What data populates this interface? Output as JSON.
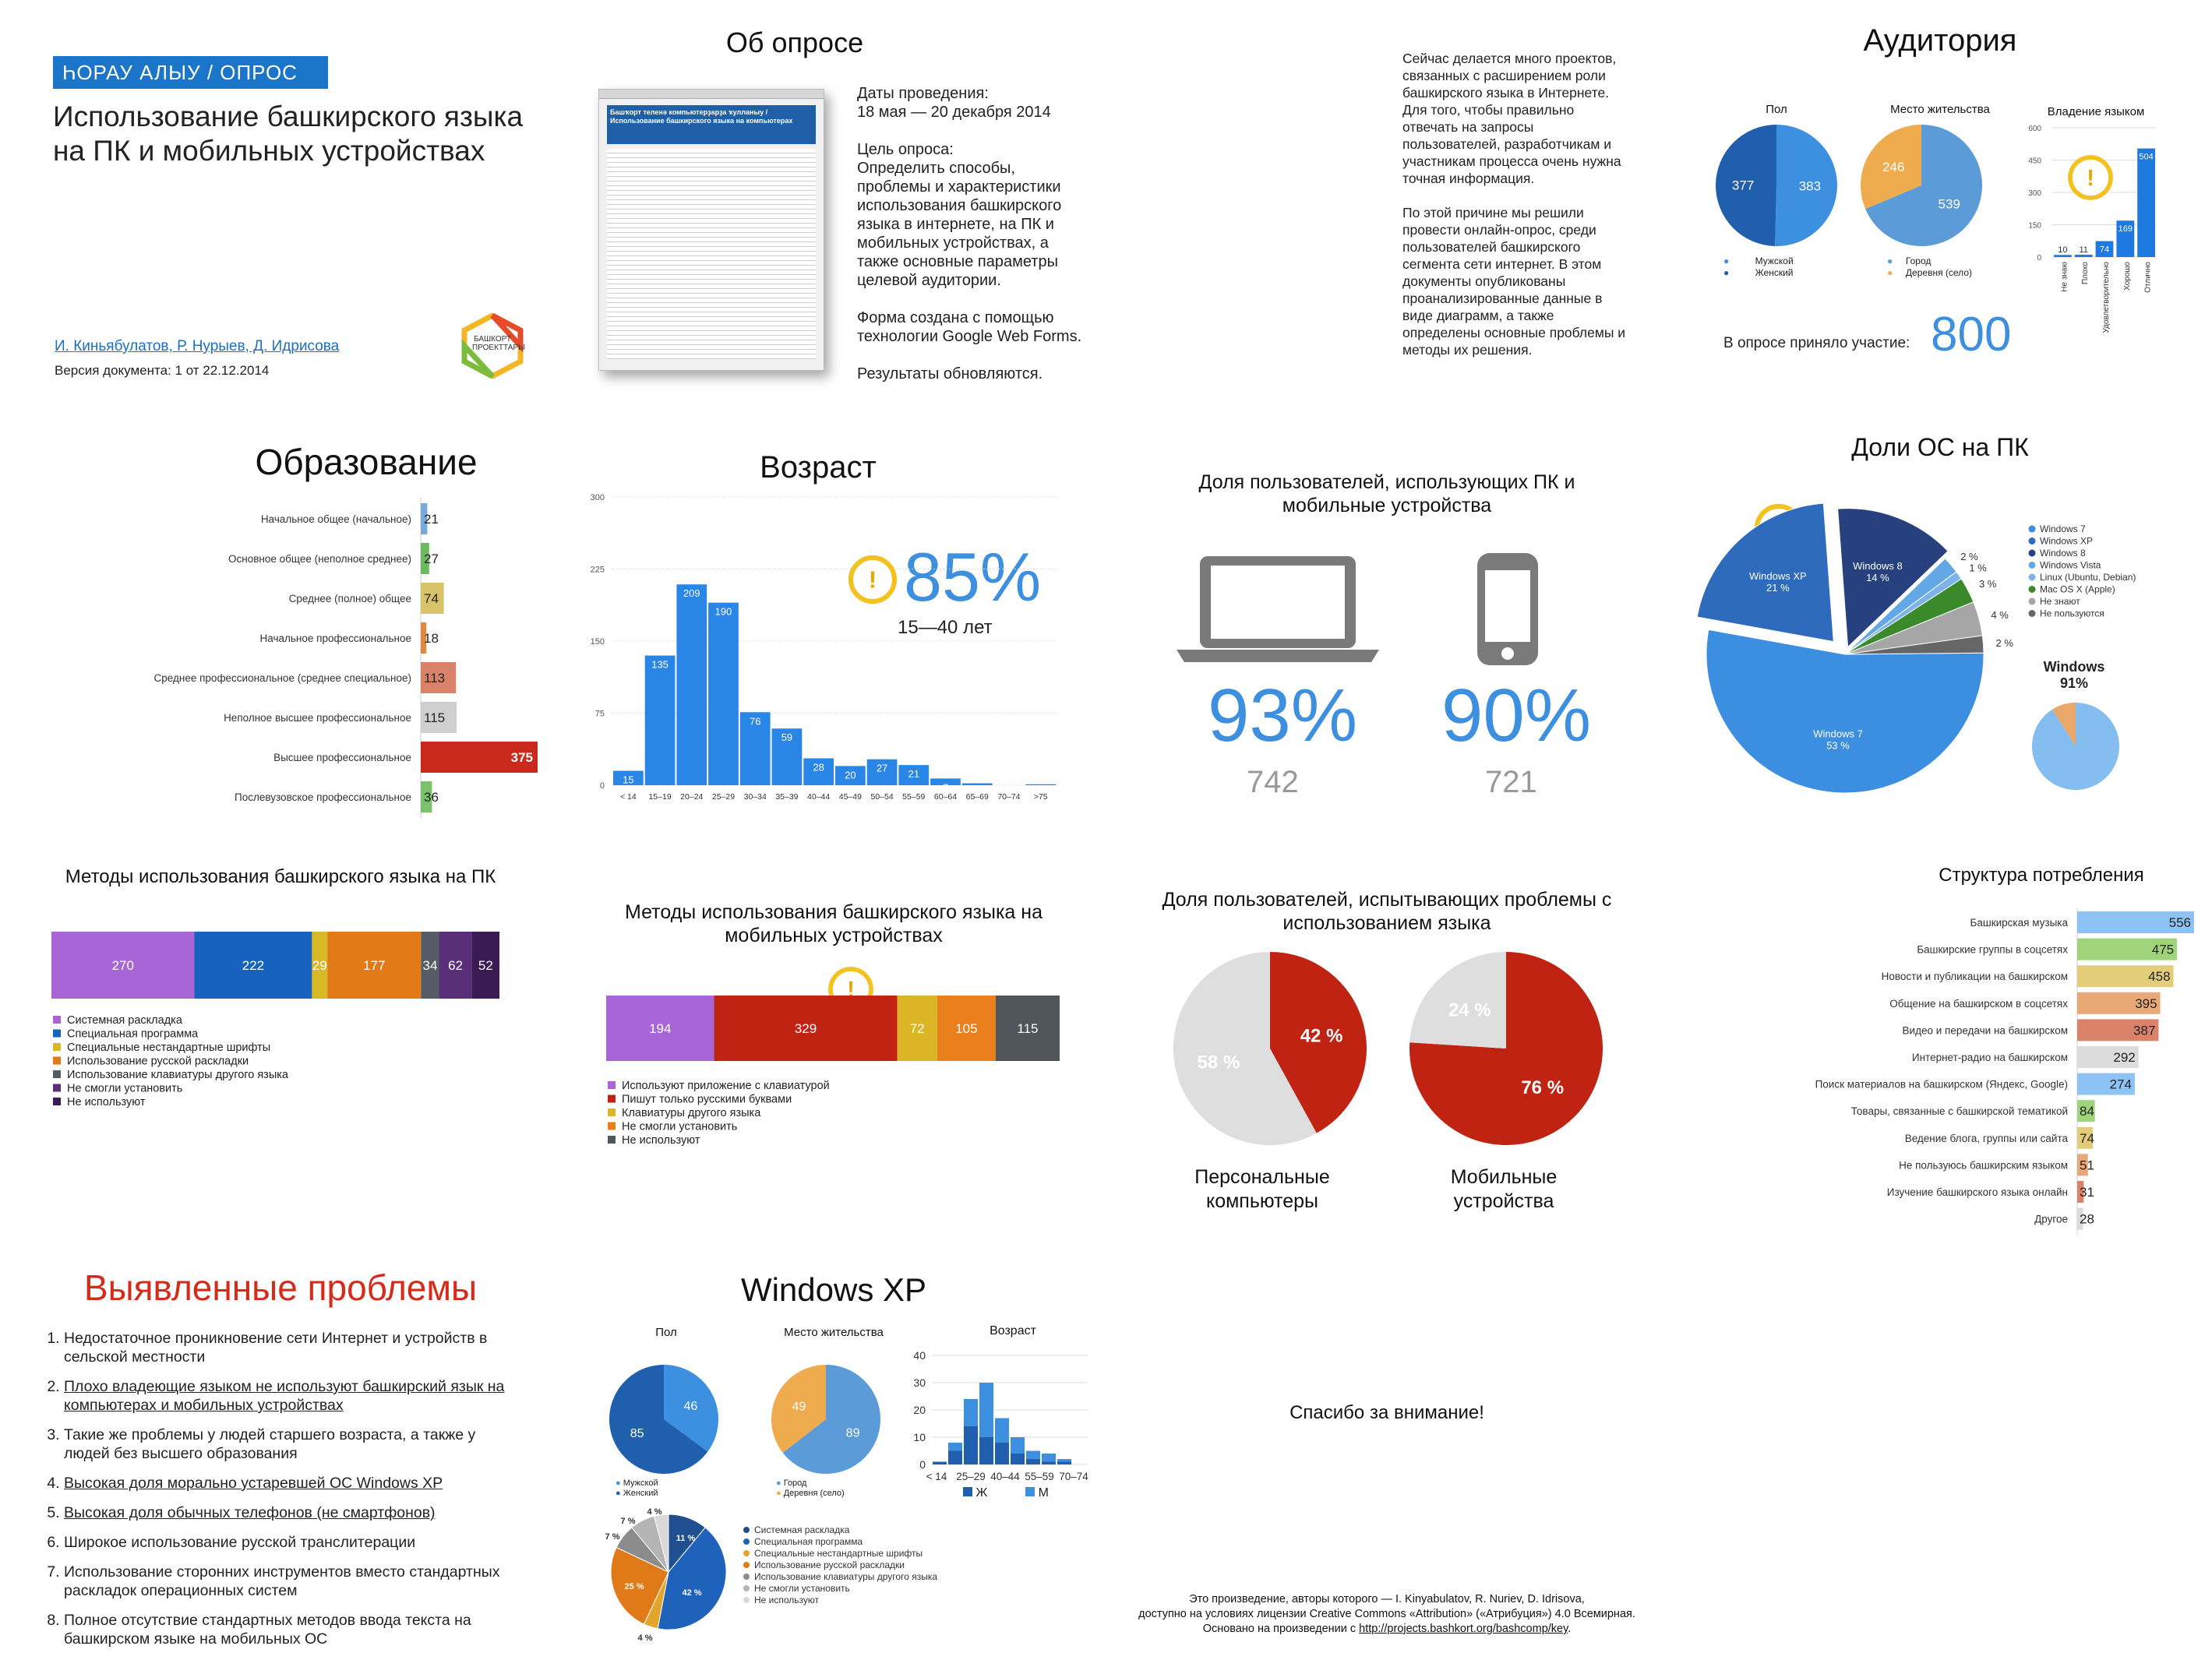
{
  "header": {
    "badge": "ҺОРАУ АЛЫУ / ОПРОС",
    "title": "Использование башкирского языка на ПК и мобильных устройствах",
    "authors": "И. Киньябулатов, Р. Нурыев, Д. Идрисова",
    "version": "Версия документа: 1 от 22.12.2014",
    "logo_text": "БАШКОРТ ПРОЕКТТАРЫ"
  },
  "about": {
    "title": "Об опросе",
    "dates_label": "Даты проведения:",
    "dates": "18 мая — 20 декабря 2014",
    "goal_label": "Цель опроса:",
    "goal": "Определить способы, проблемы и характеристики использования башкирского языка в интернете, на ПК и мобильных устройствах, а также основные параметры целевой аудитории.",
    "form": "Форма создана с помощью технологии Google Web Forms.",
    "updates": "Результаты обновляются.",
    "shot_title": "Башҡорт теленә компьютерҙарҙа ҡулланыу / Использование башкирского языка на компьютерах"
  },
  "intro": {
    "p1": "Сейчас делается много проектов, связанных с расширением роли башкирского языка в Интернете. Для того, чтобы правильно отвечать на запросы пользователей, разработчикам и участникам процесса очень нужна точная информация.",
    "p2": "По этой причине мы решили провести онлайн-опрос, среди пользователей башкирского сегмента сети интернет. В этом документы опубликованы проанализированные данные в виде диаграмм, а также определены основные проблемы и методы их решения."
  },
  "audience": {
    "title": "Аудитория",
    "gender_title": "Пол",
    "place_title": "Место жительства",
    "lang_title": "Владение языком",
    "gender_legend": [
      "Мужской",
      "Женский"
    ],
    "place_legend": [
      "Город",
      "Деревня (село)"
    ],
    "participants_label": "В опросе приняло участие:",
    "participants": "800"
  },
  "education_title": "Образование",
  "age": {
    "title": "Возраст",
    "big": "85%",
    "range": "15—40  лет"
  },
  "devices": {
    "title": "Доля пользователей, использующих ПК и мобильные устройства",
    "pc_pct": "93%",
    "pc_n": "742",
    "mob_pct": "90%",
    "mob_n": "721"
  },
  "os": {
    "title": "Доли ОС на ПК",
    "windows_label": "Windows",
    "windows_pct": "91%"
  },
  "pc_methods_title": "Методы использования башкирского языка на ПК",
  "mobile_methods_title": "Методы использования башкирского языка на мобильных устройствах",
  "problems_share": {
    "title": "Доля пользователей, испытывающих проблемы с использованием языка",
    "pc_label": "Персональные компьютеры",
    "mob_label": "Мобильные устройства"
  },
  "consumption_title": "Структура потребления",
  "issues": {
    "title": "Выявленные проблемы",
    "items": [
      "Недостаточное проникновение сети Интернет и устройств в сельской местности",
      "Плохо владеющие языком не используют башкирский язык на компьютерах и мобильных устройствах",
      "Такие же проблемы у людей старшего возраста, а также у людей без высшего образования",
      "Высокая доля морально устаревшей ОС Windows XP",
      "Высокая доля обычных телефонов (не смартфонов)",
      "Широкое использование русской транслитерации",
      "Использование сторонних инструментов вместо стандартных раскладок операционных систем",
      "Полное отсутствие стандартных методов ввода текста на башкирском языке на мобильных ОС"
    ]
  },
  "xp": {
    "title": "Windows XP",
    "gender_title": "Пол",
    "place_title": "Место жительства",
    "age_title": "Возраст",
    "gender_legend": [
      "Мужской",
      "Женский"
    ],
    "place_legend": [
      "Город",
      "Деревня (село)"
    ],
    "age_legend": [
      "Ж",
      "М"
    ]
  },
  "thanks": "Спасибо за внимание!",
  "license": {
    "l1": "Это произведение, авторы которого — I. Kinyabulatov, R. Nuriev, D. Idrisova,",
    "l2": "доступно на условиях лицензии Creative Commons «Attribution» («Атрибуция») 4.0 Всемирная.",
    "l3a": "Основано на произведении с ",
    "link": "http://projects.bashkort.org/bashcomp/key",
    "l3b": "."
  },
  "chart_data": [
    {
      "id": "audience_gender",
      "type": "pie",
      "title": "Пол",
      "labels": [
        "Мужской",
        "Женский"
      ],
      "values": [
        383,
        377
      ],
      "colors": [
        "#3d8fe0",
        "#1f5fae"
      ]
    },
    {
      "id": "audience_place",
      "type": "pie",
      "title": "Место жительства",
      "labels": [
        "Город",
        "Деревня (село)"
      ],
      "values": [
        539,
        246
      ],
      "colors": [
        "#5b9bd8",
        "#eeac4e"
      ]
    },
    {
      "id": "language_skill",
      "type": "bar",
      "title": "Владение языком",
      "categories": [
        "Не знаю",
        "Плохо",
        "Удовлетворительно",
        "Хорошо",
        "Отлично"
      ],
      "values": [
        10,
        11,
        74,
        169,
        504
      ],
      "ylim": [
        0,
        600
      ],
      "yticks": [
        0,
        150,
        300,
        450,
        600
      ]
    },
    {
      "id": "education",
      "type": "bar",
      "title": "Образование",
      "orientation": "horizontal",
      "categories": [
        "Начальное общее (начальное)",
        "Основное общее (неполное среднее)",
        "Среднее (полное) общее",
        "Начальное профессиональное",
        "Среднее профессиональное (среднее специальное)",
        "Неполное высшее профессиональное",
        "Высшее профессиональное",
        "Послевузовское профессиональное"
      ],
      "values": [
        21,
        27,
        74,
        18,
        113,
        115,
        375,
        36
      ],
      "colors": [
        "#7aa9d9",
        "#6cba5f",
        "#d8c36a",
        "#e08a3f",
        "#d8826a",
        "#cfcfcf",
        "#c92a1b",
        "#7dc06c"
      ]
    },
    {
      "id": "age",
      "type": "bar",
      "title": "Возраст",
      "categories": [
        "< 14",
        "15–19",
        "20–24",
        "25–29",
        "30–34",
        "35–39",
        "40–44",
        "45–49",
        "50–54",
        "55–59",
        "60–64",
        "65–69",
        "70–74",
        ">75"
      ],
      "values": [
        15,
        135,
        209,
        190,
        76,
        59,
        28,
        20,
        27,
        21,
        7,
        2,
        0,
        1
      ],
      "ylim": [
        0,
        300
      ],
      "yticks": [
        0,
        75,
        150,
        225,
        300
      ]
    },
    {
      "id": "os_pc",
      "type": "pie",
      "title": "Доли ОС на ПК",
      "labels": [
        "Windows 7",
        "Windows XP",
        "Windows 8",
        "Windows Vista",
        "Linux (Ubuntu, Debian)",
        "Mac OS X (Apple)",
        "Не знают",
        "Не пользуются"
      ],
      "values": [
        53,
        21,
        14,
        2,
        1,
        3,
        4,
        2
      ],
      "colors": [
        "#3b8ee0",
        "#2f6bbd",
        "#27417f",
        "#63a8e6",
        "#7cb3e8",
        "#3a8a2c",
        "#a6a6a6",
        "#666666"
      ]
    },
    {
      "id": "windows_share",
      "type": "pie",
      "title": "Windows",
      "labels": [
        "Windows",
        "Остальные"
      ],
      "values": [
        91,
        9
      ],
      "colors": [
        "#84bdf0",
        "#e9a86a"
      ]
    },
    {
      "id": "pc_methods",
      "type": "bar",
      "stacked": true,
      "title": "Методы использования башкирского языка на ПК",
      "categories": [
        "Системная раскладка",
        "Специальная программа",
        "Специальные нестандартные шрифты",
        "Использование русской раскладки",
        "Использование клавиатуры другого языка",
        "Не смогли установить",
        "Не используют"
      ],
      "values": [
        270,
        222,
        29,
        177,
        34,
        62,
        52
      ],
      "colors": [
        "#a865d6",
        "#1663bf",
        "#d9b826",
        "#e27a18",
        "#555c66",
        "#5a2f7a",
        "#3b1b52"
      ]
    },
    {
      "id": "mobile_methods",
      "type": "bar",
      "stacked": true,
      "title": "Методы использования башкирского языка на мобильных устройствах",
      "categories": [
        "Используют приложение с клавиатурой",
        "Пишут только русскими буквами",
        "Клавиатуры другого языка",
        "Не смогли установить",
        "Не используют"
      ],
      "values": [
        194,
        329,
        72,
        105,
        115
      ],
      "colors": [
        "#a865d6",
        "#c12312",
        "#dcb526",
        "#e9801c",
        "#50545b"
      ]
    },
    {
      "id": "problems_pc",
      "type": "pie",
      "title": "Персональные компьютеры",
      "labels": [
        "Есть проблемы",
        "Нет проблем"
      ],
      "values": [
        42,
        58
      ],
      "colors": [
        "#c12312",
        "#dedede"
      ]
    },
    {
      "id": "problems_mobile",
      "type": "pie",
      "title": "Мобильные устройства",
      "labels": [
        "Есть проблемы",
        "Нет проблем"
      ],
      "values": [
        76,
        24
      ],
      "colors": [
        "#c12312",
        "#dedede"
      ]
    },
    {
      "id": "consumption",
      "type": "bar",
      "orientation": "horizontal",
      "title": "Структура потребления",
      "categories": [
        "Башкирская музыка",
        "Башкирские группы в соцсетях",
        "Новости и публикации на башкирском",
        "Общение на башкирском в соцсетях",
        "Видео и передачи на башкирском",
        "Интернет-радио на башкирском",
        "Поиск материалов на башкирском (Яндекс, Google)",
        "Товары, связанные с башкирской тематикой",
        "Ведение блога, группы или сайта",
        "Не пользуюсь башкирским языком",
        "Изучение башкирского языка онлайн",
        "Другое"
      ],
      "values": [
        556,
        475,
        458,
        395,
        387,
        292,
        274,
        84,
        74,
        51,
        31,
        28
      ],
      "colors": [
        "#8ec3f5",
        "#9fd47d",
        "#e4cd7a",
        "#e9a877",
        "#d9836b",
        "#dcdcdc",
        "#8ec3f5",
        "#9fd47d",
        "#e4cd7a",
        "#e9a877",
        "#d9836b",
        "#dcdcdc"
      ]
    },
    {
      "id": "xp_gender",
      "type": "pie",
      "title": "Пол",
      "labels": [
        "Мужской",
        "Женский"
      ],
      "values": [
        46,
        85
      ],
      "colors": [
        "#3d8fe0",
        "#1f5fae"
      ]
    },
    {
      "id": "xp_place",
      "type": "pie",
      "title": "Место жительства",
      "labels": [
        "Город",
        "Деревня (село)"
      ],
      "values": [
        89,
        49
      ],
      "colors": [
        "#5b9bd8",
        "#eeac4e"
      ]
    },
    {
      "id": "xp_age",
      "type": "bar",
      "stacked": true,
      "title": "Возраст",
      "x": [
        "< 14",
        "15",
        "20–24",
        "25–29",
        "30",
        "40–44",
        "45",
        "55–59",
        "60",
        "70–74"
      ],
      "yticks": [
        0,
        10,
        20,
        30,
        40
      ],
      "ylim": [
        0,
        40
      ],
      "series": [
        {
          "name": "Ж",
          "values": [
            1,
            5,
            14,
            10,
            8,
            4,
            2,
            1,
            1,
            0
          ]
        },
        {
          "name": "М",
          "values": [
            0,
            3,
            10,
            20,
            9,
            6,
            3,
            3,
            1,
            0
          ]
        }
      ],
      "colors": [
        "#1f5fae",
        "#3d8fe0"
      ]
    },
    {
      "id": "xp_methods",
      "type": "pie",
      "labels": [
        "Системная раскладка",
        "Специальная программа",
        "Специальные нестандартные шрифты",
        "Использование русской раскладки",
        "Использование клавиатуры другого языка",
        "Не смогли установить",
        "Не используют"
      ],
      "values": [
        11,
        42,
        4,
        25,
        7,
        7,
        4
      ],
      "colors": [
        "#1f4f8f",
        "#1f62bb",
        "#e3a62d",
        "#e07a18",
        "#8c8c8c",
        "#b4b4b4",
        "#d9d9d9"
      ]
    }
  ]
}
